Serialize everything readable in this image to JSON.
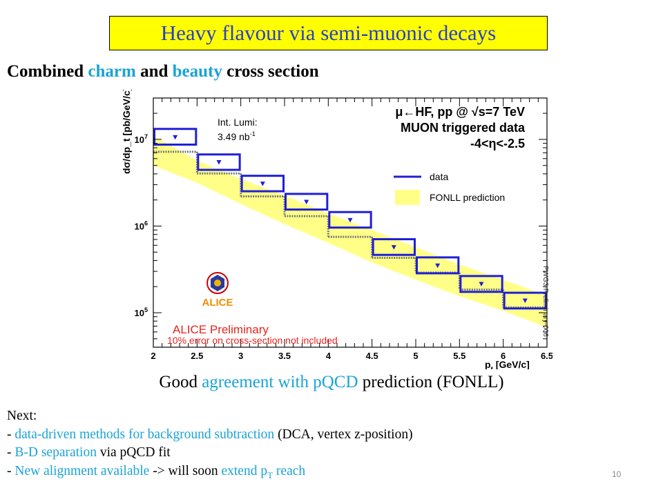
{
  "slide": {
    "title": "Heavy flavour via semi-muonic decays",
    "subtitle_parts": [
      "Combined ",
      "charm",
      " and ",
      "beauty",
      " cross section"
    ],
    "caption_parts": [
      "Good ",
      "agreement  with pQCD",
      " prediction (FONLL)"
    ],
    "next": {
      "heading": "Next:",
      "line1": [
        "- ",
        "data-driven methods for background subtraction",
        " (DCA, vertex z-position)"
      ],
      "line2": [
        "- ",
        "B-D separation",
        " via pQCD fit"
      ],
      "line3": [
        "- ",
        "New alignment available",
        " -> will soon ",
        "extend p",
        "T",
        " reach"
      ]
    },
    "page_number": "10"
  },
  "chart_data": {
    "type": "line",
    "log_y": true,
    "xlim": [
      2,
      6.5
    ],
    "ylim": [
      40000,
      30000000
    ],
    "x_ticks": [
      "2",
      "2.5",
      "3",
      "3.5",
      "4",
      "4.5",
      "5",
      "5.5",
      "6",
      "6.5"
    ],
    "y_tick_labels": [
      {
        "base": "10",
        "exp": "5",
        "value": 100000
      },
      {
        "base": "10",
        "exp": "6",
        "value": 1000000
      },
      {
        "base": "10",
        "exp": "7",
        "value": 10000000
      }
    ],
    "xlabel": {
      "main": "p",
      "sub": "t",
      "rest": " [GeV/c]"
    },
    "ylabel": "dσ/dp_t [pb/GeV/c]",
    "annotation_lumi": {
      "line1": "Int. Lumi:",
      "line2": "3.49  nb",
      "sup": "-1"
    },
    "header_lines": [
      "μ←HF, pp @ √s=7 TeV",
      "MUON triggered data",
      "-4<η<-2.5"
    ],
    "legend": [
      {
        "label": "data",
        "color": "#1f1fd6",
        "style": "line"
      },
      {
        "label": "FONLL prediction",
        "color": "#ffff88",
        "style": "fill"
      }
    ],
    "preliminary": "ALICE Preliminary",
    "note": "10% error on cross-section not included",
    "side_label": "PWG3-Preliminary-006",
    "logo_text": "ALICE",
    "colors": {
      "data": "#1f1fd6",
      "fonll_fill": "#ffff88",
      "fonll_box": "#777777",
      "red": "#e8231c"
    },
    "data_bins": [
      {
        "xlo": 2.0,
        "xhi": 2.5,
        "y": 10600000,
        "sys_lo": 8700000,
        "sys_hi": 13200000
      },
      {
        "xlo": 2.5,
        "xhi": 3.0,
        "y": 5450000,
        "sys_lo": 4450000,
        "sys_hi": 6700000
      },
      {
        "xlo": 3.0,
        "xhi": 3.5,
        "y": 3080000,
        "sys_lo": 2520000,
        "sys_hi": 3800000
      },
      {
        "xlo": 3.5,
        "xhi": 4.0,
        "y": 1900000,
        "sys_lo": 1550000,
        "sys_hi": 2350000
      },
      {
        "xlo": 4.0,
        "xhi": 4.5,
        "y": 1170000,
        "sys_lo": 960000,
        "sys_hi": 1450000
      },
      {
        "xlo": 4.5,
        "xhi": 5.0,
        "y": 570000,
        "sys_lo": 465000,
        "sys_hi": 705000
      },
      {
        "xlo": 5.0,
        "xhi": 5.5,
        "y": 350000,
        "sys_lo": 285000,
        "sys_hi": 435000
      },
      {
        "xlo": 5.5,
        "xhi": 6.0,
        "y": 214000,
        "sys_lo": 174000,
        "sys_hi": 265000
      },
      {
        "xlo": 6.0,
        "xhi": 6.5,
        "y": 138000,
        "sys_lo": 112000,
        "sys_hi": 170000
      }
    ],
    "fonll_band": {
      "x": [
        2.0,
        2.5,
        3.0,
        3.5,
        4.0,
        4.5,
        5.0,
        5.5,
        6.0,
        6.5
      ],
      "lo": [
        5000000,
        3150000,
        1800000,
        1050000,
        640000,
        380000,
        240000,
        155000,
        105000,
        68000
      ],
      "hi": [
        11000000,
        5700000,
        3500000,
        2250000,
        1400000,
        900000,
        570000,
        360000,
        240000,
        158000
      ],
      "box": [
        7200000,
        4050000,
        2200000,
        1300000,
        750000,
        430000,
        290000,
        185000,
        115000
      ]
    }
  }
}
